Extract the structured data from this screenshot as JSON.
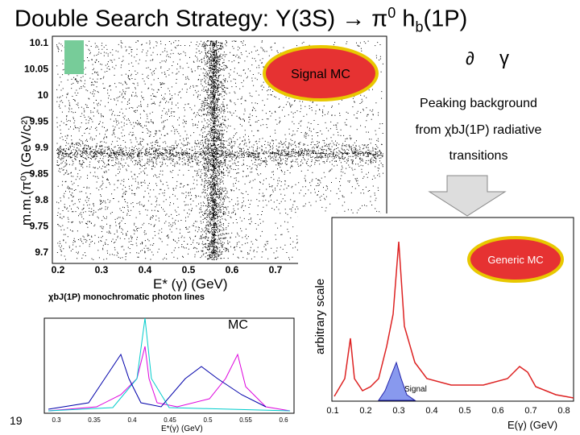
{
  "title": {
    "main": "Double Search Strategy: Υ(3S) → π",
    "sup": "0",
    "mid": " h",
    "sub": "b",
    "end": "(1P)"
  },
  "corner_gamma": "γ",
  "scatter": {
    "y_label": "m.m.(π⁰)  (GeV/c²)",
    "x_label": "E* (γ)   (GeV)",
    "y_ticks": [
      "10.1",
      "10.05",
      "10",
      "9.95",
      "9.9",
      "9.85",
      "9.8",
      "9.75",
      "9.7"
    ],
    "x_ticks": [
      "0.2",
      "0.3",
      "0.4",
      "0.5",
      "0.6",
      "0.7"
    ],
    "signal_mc": "Signal MC",
    "note": [
      "Peaking background",
      "from χbJ(1P) radiative",
      "transitions"
    ]
  },
  "mc_plot": {
    "title": "χbJ(1P) monochromatic photon lines",
    "label": "MC",
    "x_ticks": [
      "0.3",
      "0.35",
      "0.4",
      "0.45",
      "0.5",
      "0.55",
      "0.6"
    ],
    "x_label": "E*(γ) (GeV)"
  },
  "generic_plot": {
    "y_label": "arbitrary scale",
    "label": "Generic MC",
    "signal": "Signal",
    "x_ticks": [
      "0.1",
      "0.2",
      "0.3",
      "0.4",
      "0.5",
      "0.6",
      "0.7",
      "0.8"
    ],
    "x_label": "E(γ) (GeV)"
  },
  "page_number": "19"
}
